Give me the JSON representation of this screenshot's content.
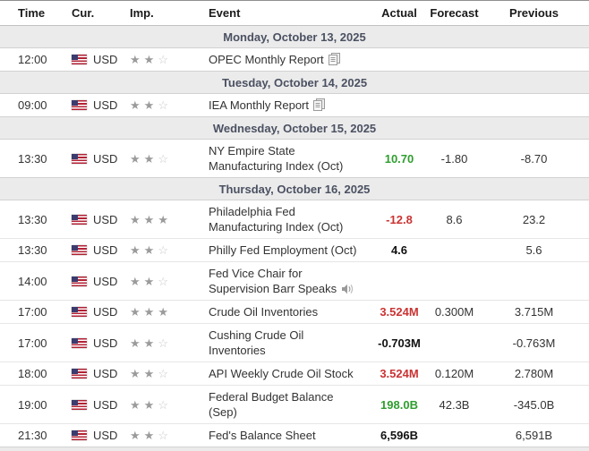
{
  "table": {
    "columns": [
      "Time",
      "Cur.",
      "Imp.",
      "Event",
      "Actual",
      "Forecast",
      "Previous"
    ],
    "colors": {
      "actual_green": "#2f9e2f",
      "actual_red": "#cb3333",
      "actual_neutral": "#111111",
      "date_row_bg": "#ebebeb"
    },
    "max_stars": 3,
    "rows": [
      {
        "type": "date",
        "label": "Monday, October 13, 2025"
      },
      {
        "type": "event",
        "time": "12:00",
        "currency": "USD",
        "flag": "us-flag-icon",
        "importance": 2,
        "event": "OPEC Monthly Report",
        "event_icon": "report-icon",
        "actual": "",
        "actual_style": "",
        "forecast": "",
        "previous": ""
      },
      {
        "type": "date",
        "label": "Tuesday, October 14, 2025"
      },
      {
        "type": "event",
        "time": "09:00",
        "currency": "USD",
        "flag": "us-flag-icon",
        "importance": 2,
        "event": "IEA Monthly Report",
        "event_icon": "report-icon",
        "actual": "",
        "actual_style": "",
        "forecast": "",
        "previous": ""
      },
      {
        "type": "date",
        "label": "Wednesday, October 15, 2025"
      },
      {
        "type": "event",
        "time": "13:30",
        "currency": "USD",
        "flag": "us-flag-icon",
        "importance": 2,
        "event": "NY Empire State Manufacturing Index (Oct)",
        "event_icon": "",
        "actual": "10.70",
        "actual_style": "green",
        "forecast": "-1.80",
        "previous": "-8.70"
      },
      {
        "type": "date",
        "label": "Thursday, October 16, 2025"
      },
      {
        "type": "event",
        "time": "13:30",
        "currency": "USD",
        "flag": "us-flag-icon",
        "importance": 3,
        "event": "Philadelphia Fed Manufacturing Index (Oct)",
        "event_icon": "",
        "actual": "-12.8",
        "actual_style": "red",
        "forecast": "8.6",
        "previous": "23.2"
      },
      {
        "type": "event",
        "time": "13:30",
        "currency": "USD",
        "flag": "us-flag-icon",
        "importance": 2,
        "event": "Philly Fed Employment (Oct)",
        "event_icon": "",
        "actual": "4.6",
        "actual_style": "neutral",
        "forecast": "",
        "previous": "5.6"
      },
      {
        "type": "event",
        "time": "14:00",
        "currency": "USD",
        "flag": "us-flag-icon",
        "importance": 2,
        "event": "Fed Vice Chair for Supervision Barr Speaks",
        "event_icon": "speaker-icon",
        "actual": "",
        "actual_style": "",
        "forecast": "",
        "previous": ""
      },
      {
        "type": "event",
        "time": "17:00",
        "currency": "USD",
        "flag": "us-flag-icon",
        "importance": 3,
        "event": "Crude Oil Inventories",
        "event_icon": "",
        "actual": "3.524M",
        "actual_style": "red",
        "forecast": "0.300M",
        "previous": "3.715M"
      },
      {
        "type": "event",
        "time": "17:00",
        "currency": "USD",
        "flag": "us-flag-icon",
        "importance": 2,
        "event": "Cushing Crude Oil Inventories",
        "event_icon": "",
        "actual": "-0.703M",
        "actual_style": "neutral",
        "forecast": "",
        "previous": "-0.763M"
      },
      {
        "type": "event",
        "time": "18:00",
        "currency": "USD",
        "flag": "us-flag-icon",
        "importance": 2,
        "event": "API Weekly Crude Oil Stock",
        "event_icon": "",
        "actual": "3.524M",
        "actual_style": "red",
        "forecast": "0.120M",
        "previous": "2.780M"
      },
      {
        "type": "event",
        "time": "19:00",
        "currency": "USD",
        "flag": "us-flag-icon",
        "importance": 2,
        "event": "Federal Budget Balance (Sep)",
        "event_icon": "",
        "actual": "198.0B",
        "actual_style": "green",
        "forecast": "42.3B",
        "previous": "-345.0B"
      },
      {
        "type": "event",
        "time": "21:30",
        "currency": "USD",
        "flag": "us-flag-icon",
        "importance": 2,
        "event": "Fed's Balance Sheet",
        "event_icon": "",
        "actual": "6,596B",
        "actual_style": "neutral",
        "forecast": "",
        "previous": "6,591B"
      }
    ]
  }
}
